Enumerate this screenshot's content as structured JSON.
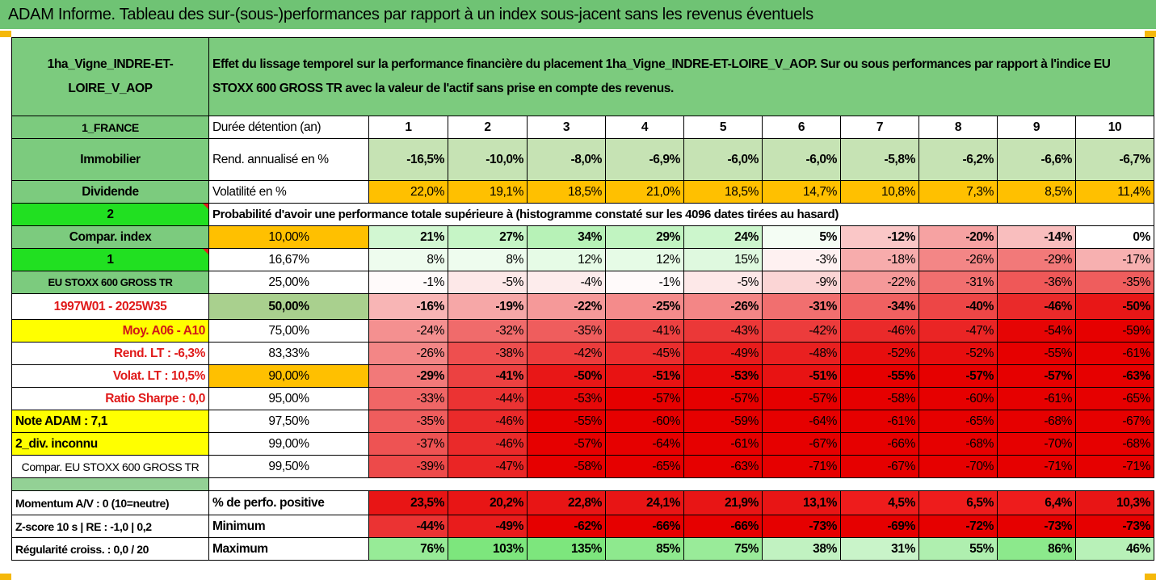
{
  "title": "ADAM Informe. Tableau des sur-(sous-)performances par rapport à un index sous-jacent sans les revenus éventuels",
  "asset_name": "1ha_Vigne_INDRE-ET-LOIRE_V_AOP",
  "description": "Effet du lissage temporel sur la performance financière du placement 1ha_Vigne_INDRE-ET-LOIRE_V_AOP. Sur ou sous performances par rapport à l'indice EU STOXX 600 GROSS TR avec la valeur de l'actif sans prise en compte des revenus.",
  "left_labels": {
    "country": "1_FRANCE",
    "category": "Immobilier",
    "dividend": "Dividende",
    "num2": "2",
    "compar_index": "Compar. index",
    "num1": "1",
    "index_name": "EU STOXX 600 GROSS TR",
    "period": "1997W01 - 2025W35",
    "moy": "Moy. A06 - A10",
    "rend_lt": "Rend. LT :   -6,3%",
    "volat_lt": "Volat. LT :   10,5%",
    "sharpe": "Ratio Sharpe :    0,0",
    "note": "Note ADAM : 7,1",
    "div": "2_div. inconnu",
    "compar_full": "Compar. EU STOXX 600 GROSS TR",
    "momentum": "Momentum A/V : 0 (10=neutre)",
    "zscore": "Z-score 10 s  |  RE : -1,0  |  0,2",
    "regularite": "Régularité croiss. : 0,0 / 20"
  },
  "row_labels": {
    "duree": "Durée détention (an)",
    "rend": "Rend. annualisé en %",
    "vol": "Volatilité en %",
    "prob": "Probabilité d'avoir une performance totale supérieure à (histogramme constaté sur les 4096 dates tirées au hasard)",
    "perf_pos": "% de perfo. positive",
    "minimum": "Minimum",
    "maximum": "Maximum"
  },
  "years": [
    "1",
    "2",
    "3",
    "4",
    "5",
    "6",
    "7",
    "8",
    "9",
    "10"
  ],
  "rend": [
    "-16,5%",
    "-10,0%",
    "-8,0%",
    "-6,9%",
    "-6,0%",
    "-6,0%",
    "-5,8%",
    "-6,2%",
    "-6,6%",
    "-6,7%"
  ],
  "vol": [
    "22,0%",
    "19,1%",
    "18,5%",
    "21,0%",
    "18,5%",
    "14,7%",
    "10,8%",
    "7,3%",
    "8,5%",
    "11,4%"
  ],
  "quantiles": [
    {
      "q": "10,00%",
      "vals": [
        "21%",
        "27%",
        "34%",
        "29%",
        "24%",
        "5%",
        "-12%",
        "-20%",
        "-14%",
        "0%"
      ]
    },
    {
      "q": "16,67%",
      "vals": [
        "8%",
        "8%",
        "12%",
        "12%",
        "15%",
        "-3%",
        "-18%",
        "-26%",
        "-29%",
        "-17%"
      ]
    },
    {
      "q": "25,00%",
      "vals": [
        "-1%",
        "-5%",
        "-4%",
        "-1%",
        "-5%",
        "-9%",
        "-22%",
        "-31%",
        "-36%",
        "-35%"
      ]
    },
    {
      "q": "50,00%",
      "vals": [
        "-16%",
        "-19%",
        "-22%",
        "-25%",
        "-26%",
        "-31%",
        "-34%",
        "-40%",
        "-46%",
        "-50%"
      ]
    },
    {
      "q": "75,00%",
      "vals": [
        "-24%",
        "-32%",
        "-35%",
        "-41%",
        "-43%",
        "-42%",
        "-46%",
        "-47%",
        "-54%",
        "-59%"
      ]
    },
    {
      "q": "83,33%",
      "vals": [
        "-26%",
        "-38%",
        "-42%",
        "-45%",
        "-49%",
        "-48%",
        "-52%",
        "-52%",
        "-55%",
        "-61%"
      ]
    },
    {
      "q": "90,00%",
      "vals": [
        "-29%",
        "-41%",
        "-50%",
        "-51%",
        "-53%",
        "-51%",
        "-55%",
        "-57%",
        "-57%",
        "-63%"
      ]
    },
    {
      "q": "95,00%",
      "vals": [
        "-33%",
        "-44%",
        "-53%",
        "-57%",
        "-57%",
        "-57%",
        "-58%",
        "-60%",
        "-61%",
        "-65%"
      ]
    },
    {
      "q": "97,50%",
      "vals": [
        "-35%",
        "-46%",
        "-55%",
        "-60%",
        "-59%",
        "-64%",
        "-61%",
        "-65%",
        "-68%",
        "-67%"
      ]
    },
    {
      "q": "99,00%",
      "vals": [
        "-37%",
        "-46%",
        "-57%",
        "-64%",
        "-61%",
        "-67%",
        "-66%",
        "-68%",
        "-70%",
        "-68%"
      ]
    },
    {
      "q": "99,50%",
      "vals": [
        "-39%",
        "-47%",
        "-58%",
        "-65%",
        "-63%",
        "-71%",
        "-67%",
        "-70%",
        "-71%",
        "-71%"
      ]
    }
  ],
  "perf_pos": [
    "23,5%",
    "20,2%",
    "22,8%",
    "24,1%",
    "21,9%",
    "13,1%",
    "4,5%",
    "6,5%",
    "6,4%",
    "10,3%"
  ],
  "minimum": [
    "-44%",
    "-49%",
    "-62%",
    "-66%",
    "-66%",
    "-73%",
    "-69%",
    "-72%",
    "-73%",
    "-73%"
  ],
  "maximum": [
    "76%",
    "103%",
    "135%",
    "85%",
    "75%",
    "38%",
    "31%",
    "55%",
    "86%",
    "46%"
  ]
}
